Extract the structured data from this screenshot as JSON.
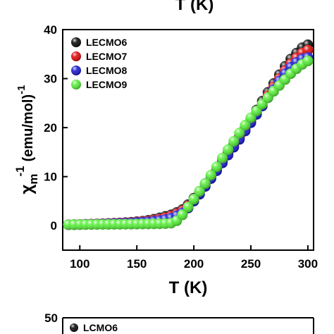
{
  "chart_data": [
    {
      "type": "scatter",
      "xlabel": "T (K)",
      "ylabel_base": "χ",
      "ylabel_sub": "m",
      "ylabel_sup": "-1",
      "ylabel_units": "(emu/mol)",
      "ylabel_units_sup": "-1",
      "xlim": [
        85,
        305
      ],
      "ylim": [
        -5,
        40
      ],
      "xticks": [
        100,
        150,
        200,
        250,
        300
      ],
      "yticks": [
        0,
        10,
        20,
        30,
        40
      ],
      "grid": false,
      "legend_position": "top-left",
      "series": [
        {
          "name": "LECMO6",
          "color": "#000000",
          "x": [
            90,
            95,
            100,
            105,
            110,
            115,
            120,
            125,
            130,
            135,
            140,
            145,
            150,
            155,
            160,
            165,
            170,
            175,
            180,
            185,
            190,
            195,
            200,
            205,
            210,
            215,
            220,
            225,
            230,
            235,
            240,
            245,
            250,
            255,
            260,
            265,
            270,
            275,
            280,
            285,
            290,
            295,
            300
          ],
          "y": [
            0.2,
            0.22,
            0.25,
            0.28,
            0.32,
            0.36,
            0.4,
            0.45,
            0.5,
            0.56,
            0.62,
            0.7,
            0.8,
            0.92,
            1.1,
            1.3,
            1.6,
            1.9,
            2.2,
            2.7,
            3.3,
            4.3,
            5.6,
            7.0,
            8.6,
            10.2,
            11.8,
            13.3,
            14.9,
            16.6,
            18.3,
            20.0,
            21.8,
            23.6,
            25.4,
            27.2,
            29.0,
            30.8,
            32.5,
            34.0,
            35.2,
            36.3,
            36.9
          ]
        },
        {
          "name": "LECMO7",
          "color": "#e00000",
          "x": [
            90,
            95,
            100,
            105,
            110,
            115,
            120,
            125,
            130,
            135,
            140,
            145,
            150,
            155,
            160,
            165,
            170,
            175,
            180,
            185,
            190,
            195,
            200,
            205,
            210,
            215,
            220,
            225,
            230,
            235,
            240,
            245,
            250,
            255,
            260,
            265,
            270,
            275,
            280,
            285,
            290,
            295,
            300
          ],
          "y": [
            0.2,
            0.21,
            0.23,
            0.26,
            0.29,
            0.32,
            0.36,
            0.4,
            0.45,
            0.5,
            0.55,
            0.62,
            0.7,
            0.8,
            0.95,
            1.1,
            1.35,
            1.6,
            1.9,
            2.4,
            3.0,
            4.0,
            5.4,
            6.8,
            8.4,
            10.0,
            11.6,
            13.1,
            14.6,
            16.2,
            17.9,
            19.6,
            21.3,
            23.0,
            24.8,
            26.5,
            28.3,
            30.0,
            31.6,
            33.0,
            34.2,
            35.2,
            35.8
          ]
        },
        {
          "name": "LECMO8",
          "color": "#1010d0",
          "x": [
            90,
            95,
            100,
            105,
            110,
            115,
            120,
            125,
            130,
            135,
            140,
            145,
            150,
            155,
            160,
            165,
            170,
            175,
            180,
            185,
            190,
            195,
            200,
            205,
            210,
            215,
            220,
            225,
            230,
            235,
            240,
            245,
            250,
            255,
            260,
            265,
            270,
            275,
            280,
            285,
            290,
            295,
            300
          ],
          "y": [
            0.2,
            0.21,
            0.22,
            0.24,
            0.26,
            0.29,
            0.32,
            0.35,
            0.39,
            0.43,
            0.48,
            0.53,
            0.6,
            0.68,
            0.78,
            0.9,
            1.05,
            1.25,
            1.5,
            2.0,
            2.6,
            3.6,
            5.0,
            6.4,
            8.0,
            9.6,
            11.2,
            12.8,
            14.4,
            16.0,
            17.6,
            19.3,
            21.0,
            22.7,
            24.4,
            26.1,
            27.8,
            29.5,
            31.0,
            32.3,
            33.3,
            34.0,
            34.3
          ]
        },
        {
          "name": "LECMO9",
          "color": "#50ee30",
          "x": [
            90,
            95,
            100,
            105,
            110,
            115,
            120,
            125,
            130,
            135,
            140,
            145,
            150,
            155,
            160,
            165,
            170,
            175,
            180,
            185,
            190,
            195,
            200,
            205,
            210,
            215,
            220,
            225,
            230,
            235,
            240,
            245,
            250,
            255,
            260,
            265,
            270,
            275,
            280,
            285,
            290,
            295,
            300
          ],
          "y": [
            0.2,
            0.2,
            0.21,
            0.22,
            0.23,
            0.24,
            0.25,
            0.26,
            0.27,
            0.28,
            0.29,
            0.3,
            0.31,
            0.32,
            0.34,
            0.36,
            0.38,
            0.41,
            0.5,
            1.0,
            2.2,
            3.8,
            5.4,
            7.0,
            8.6,
            10.3,
            12.0,
            13.8,
            15.5,
            17.2,
            18.9,
            20.5,
            22.0,
            23.4,
            24.8,
            26.1,
            27.4,
            28.6,
            29.8,
            31.0,
            32.0,
            32.9,
            33.6
          ]
        }
      ]
    },
    {
      "type": "scatter",
      "xlabel": "T (K)",
      "ylim_top": 50,
      "yticks": [
        50
      ],
      "legend_position": "top-left",
      "series": [
        {
          "name": "LCMO6",
          "color": "#000000"
        }
      ]
    }
  ]
}
